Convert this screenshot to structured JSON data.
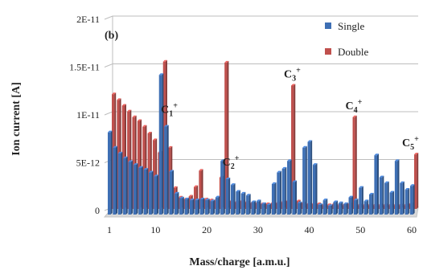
{
  "chart_data": {
    "type": "bar",
    "subtype": "3d-clustered-bar",
    "panel_label": "(b)",
    "xlabel": "Mass/charge [a.m.u.]",
    "ylabel": "Ion current [A]",
    "ylim": [
      0,
      2e-11
    ],
    "y_ticks": [
      {
        "value": 0,
        "label": "0"
      },
      {
        "value": 5e-12,
        "label": "5E-12"
      },
      {
        "value": 1e-11,
        "label": "1E-11"
      },
      {
        "value": 1.5e-11,
        "label": "1.5E-11"
      },
      {
        "value": 2e-11,
        "label": "2E-11"
      }
    ],
    "x_ticks": [
      {
        "value": 1,
        "label": "1"
      },
      {
        "value": 10,
        "label": "10"
      },
      {
        "value": 20,
        "label": "20"
      },
      {
        "value": 30,
        "label": "30"
      },
      {
        "value": 40,
        "label": "40"
      },
      {
        "value": 50,
        "label": "50"
      },
      {
        "value": 60,
        "label": "60"
      }
    ],
    "grid": true,
    "legend_position": "top-right",
    "annotations": [
      {
        "text": "C",
        "sub": "1",
        "sup": "+",
        "mass": 12
      },
      {
        "text": "C",
        "sub": "2",
        "sup": "+",
        "mass": 24
      },
      {
        "text": "C",
        "sub": "3",
        "sup": "+",
        "mass": 36
      },
      {
        "text": "C",
        "sub": "4",
        "sup": "+",
        "mass": 48
      },
      {
        "text": "C",
        "sub": "5",
        "sup": "+",
        "mass": 60
      }
    ],
    "x": [
      1,
      2,
      3,
      4,
      5,
      6,
      7,
      8,
      9,
      10,
      11,
      12,
      13,
      14,
      15,
      16,
      17,
      18,
      19,
      20,
      21,
      22,
      23,
      24,
      25,
      26,
      27,
      28,
      29,
      30,
      31,
      32,
      33,
      34,
      35,
      36,
      37,
      38,
      39,
      40,
      41,
      42,
      43,
      44,
      45,
      46,
      47,
      48,
      49,
      50,
      51,
      52,
      53,
      54,
      55,
      56,
      57,
      58,
      59,
      60
    ],
    "series": [
      {
        "name": "Single",
        "color": "#3e6fb4",
        "values": [
          8.6e-12,
          7e-12,
          6.4e-12,
          5.9e-12,
          5.5e-12,
          5.2e-12,
          4.9e-12,
          4.7e-12,
          4.4e-12,
          4e-12,
          1.46e-11,
          9.2e-12,
          4.5e-12,
          2.2e-12,
          1.7e-12,
          1.6e-12,
          1.5e-12,
          1.5e-12,
          1.6e-12,
          1.5e-12,
          1.4e-12,
          1.8e-12,
          5.6e-12,
          3.7e-12,
          3.1e-12,
          2.4e-12,
          2.2e-12,
          2e-12,
          1.3e-12,
          1.4e-12,
          1.1e-12,
          1e-12,
          3.2e-12,
          4.4e-12,
          4.8e-12,
          5.6e-12,
          3.4e-12,
          1.2e-12,
          7e-12,
          7.6e-12,
          5.2e-12,
          1e-12,
          1.5e-12,
          9e-13,
          1.3e-12,
          1.2e-12,
          1.1e-12,
          1.8e-12,
          1.5e-12,
          2.8e-12,
          1.4e-12,
          2.1e-12,
          6.2e-12,
          3.9e-12,
          3.3e-12,
          2.3e-12,
          5.6e-12,
          3.3e-12,
          2.6e-12,
          3e-12
        ]
      },
      {
        "name": "Double",
        "color": "#c0504d",
        "values": [
          1.2e-11,
          1.14e-11,
          1.08e-11,
          1.02e-11,
          9.6e-12,
          9.2e-12,
          8.6e-12,
          7.9e-12,
          7.2e-12,
          5.9e-12,
          1.54e-11,
          6.4e-12,
          2.2e-12,
          1.2e-12,
          1e-12,
          1.3e-12,
          2.3e-12,
          4e-12,
          1e-12,
          9e-13,
          9e-13,
          3.3e-12,
          1.53e-11,
          8e-13,
          7e-13,
          8e-13,
          7e-13,
          6e-13,
          6e-13,
          5e-13,
          5e-13,
          6e-13,
          6e-13,
          7e-13,
          8e-13,
          1.29e-11,
          8e-13,
          6e-13,
          5e-13,
          5e-13,
          5e-13,
          4e-13,
          4e-13,
          5e-13,
          4e-13,
          4e-13,
          5e-13,
          9.6e-12,
          4e-13,
          4e-13,
          4e-13,
          4e-13,
          4e-13,
          4e-13,
          4e-13,
          4e-13,
          4e-13,
          4e-13,
          5e-13,
          5.7e-12
        ]
      }
    ]
  }
}
